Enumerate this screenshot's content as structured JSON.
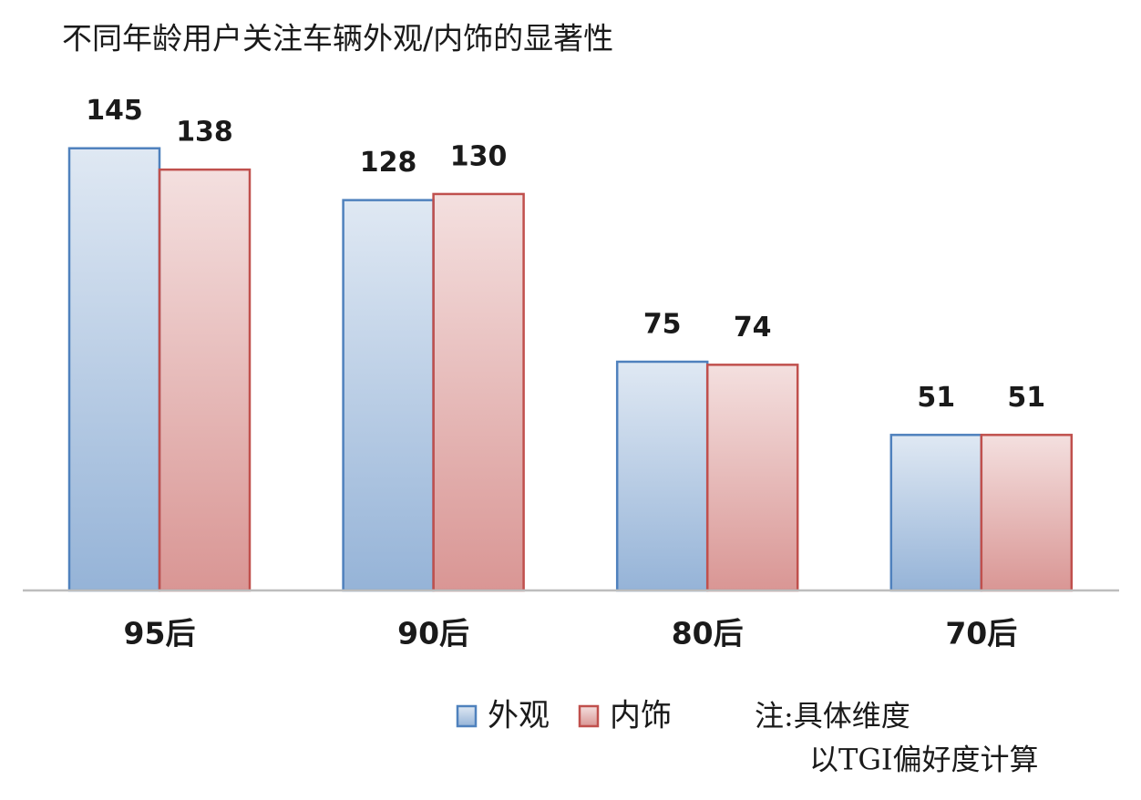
{
  "chart_data": {
    "type": "bar",
    "title": "不同年龄用户关注车辆外观/内饰的显著性",
    "categories": [
      "95后",
      "90后",
      "80后",
      "70后"
    ],
    "series": [
      {
        "name": "外观",
        "color": "#4f81bd",
        "values": [
          145,
          128,
          75,
          51
        ]
      },
      {
        "name": "内饰",
        "color": "#c0504d",
        "values": [
          138,
          130,
          74,
          51
        ]
      }
    ],
    "ylim": [
      0,
      150
    ],
    "note": [
      "注:具体维度",
      "以TGI偏好度计算"
    ]
  }
}
